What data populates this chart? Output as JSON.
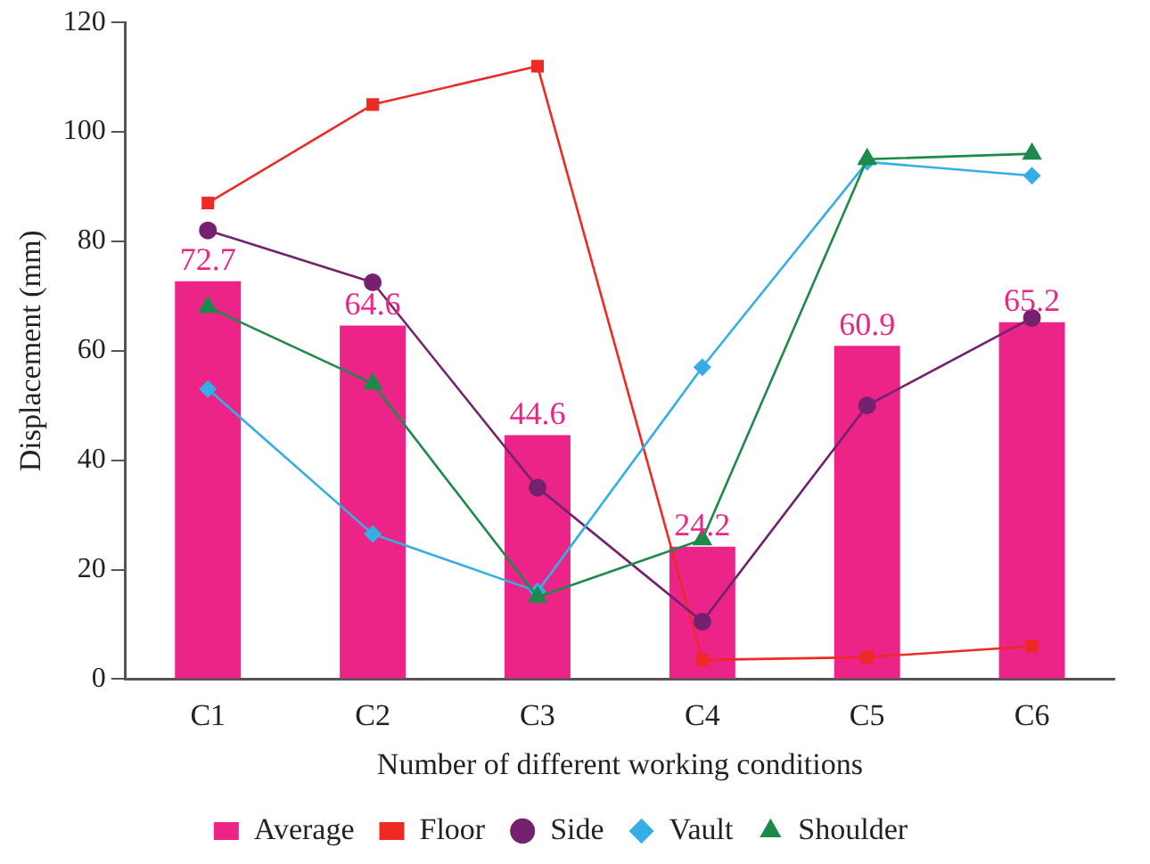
{
  "chart_data": {
    "type": "bar",
    "xlabel": "Number of different working conditions",
    "ylabel": "Displacement (mm)",
    "categories": [
      "C1",
      "C2",
      "C3",
      "C4",
      "C5",
      "C6"
    ],
    "ylim": [
      0,
      120
    ],
    "yticks": [
      0,
      20,
      40,
      60,
      80,
      100,
      120
    ],
    "grid": false,
    "legend": "bottom",
    "series": [
      {
        "name": "Average",
        "color": "#ec2487",
        "values": [
          72.7,
          64.6,
          44.6,
          24.2,
          60.9,
          65.2
        ],
        "value_labels": [
          "72.7",
          "64.6",
          "44.6",
          "24.2",
          "60.9",
          "65.2"
        ]
      },
      {
        "name": "Floor",
        "type": "line",
        "color": "#ee2a24",
        "marker": "square",
        "values": [
          87,
          105,
          112,
          3.5,
          4,
          6
        ]
      },
      {
        "name": "Side",
        "type": "line",
        "color": "#74226f",
        "marker": "circle",
        "values": [
          82,
          72.5,
          35,
          10.5,
          50,
          66
        ]
      },
      {
        "name": "Vault",
        "type": "line",
        "color": "#34aee4",
        "marker": "diamond",
        "values": [
          53,
          26.5,
          16,
          57,
          94.5,
          92
        ]
      },
      {
        "name": "Shoulder",
        "type": "line",
        "color": "#1c8a4a",
        "marker": "triangle",
        "values": [
          68,
          54,
          15,
          25.5,
          95,
          96
        ]
      }
    ]
  }
}
